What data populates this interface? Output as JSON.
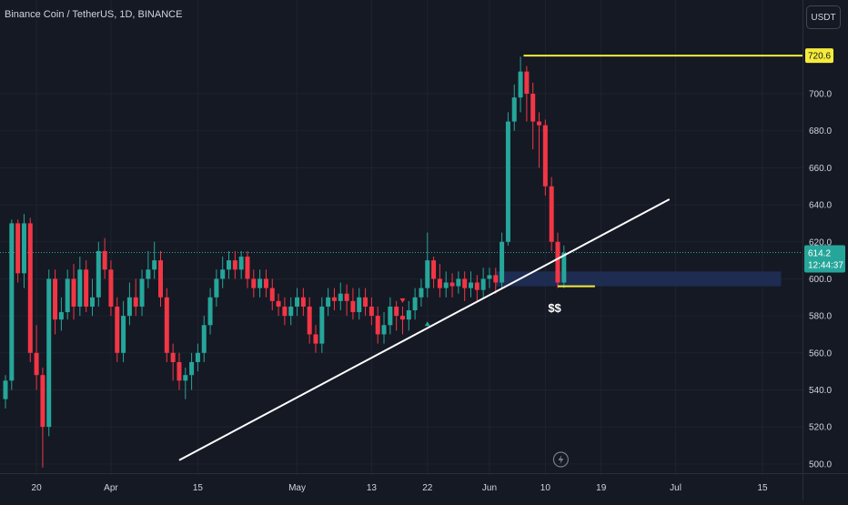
{
  "header": {
    "title": "Binance Coin / TetherUS, 1D, BINANCE",
    "currency_button": "USDT"
  },
  "colors": {
    "up": "#26a69a",
    "down": "#f23645",
    "background": "#151924",
    "grid": "#1f2330",
    "text": "#d1d4dc",
    "annotation_yellow": "#f5eb3b",
    "trendline": "#ffffff",
    "zone": "#1e2f55"
  },
  "chart_data": {
    "type": "candlestick",
    "symbol": "Binance Coin / TetherUS",
    "interval": "1D",
    "exchange": "BINANCE",
    "y_axis": {
      "min": 495,
      "max": 731,
      "ticks": [
        "500.0",
        "520.0",
        "540.0",
        "560.0",
        "580.0",
        "600.0",
        "620.0",
        "640.0",
        "660.0",
        "680.0",
        "700.0"
      ]
    },
    "x_ticks": [
      {
        "label": "20",
        "day": 5
      },
      {
        "label": "Apr",
        "day": 17
      },
      {
        "label": "15",
        "day": 31
      },
      {
        "label": "May",
        "day": 47
      },
      {
        "label": "13",
        "day": 59
      },
      {
        "label": "22",
        "day": 68
      },
      {
        "label": "Jun",
        "day": 78
      },
      {
        "label": "10",
        "day": 87
      },
      {
        "label": "19",
        "day": 96
      },
      {
        "label": "Jul",
        "day": 108
      },
      {
        "label": "15",
        "day": 122
      }
    ],
    "candles": [
      [
        0,
        535,
        545,
        530,
        548
      ],
      [
        1,
        545,
        630,
        540,
        632
      ],
      [
        2,
        630,
        603,
        598,
        632
      ],
      [
        3,
        603,
        630,
        595,
        635
      ],
      [
        4,
        630,
        560,
        555,
        633
      ],
      [
        5,
        560,
        548,
        540,
        575
      ],
      [
        6,
        548,
        520,
        498,
        552
      ],
      [
        7,
        520,
        600,
        515,
        605
      ],
      [
        8,
        600,
        578,
        570,
        605
      ],
      [
        9,
        578,
        582,
        572,
        590
      ],
      [
        10,
        582,
        600,
        578,
        605
      ],
      [
        11,
        600,
        585,
        578,
        608
      ],
      [
        12,
        585,
        605,
        580,
        612
      ],
      [
        13,
        605,
        585,
        582,
        610
      ],
      [
        14,
        585,
        590,
        580,
        600
      ],
      [
        15,
        590,
        615,
        585,
        620
      ],
      [
        16,
        615,
        605,
        600,
        622
      ],
      [
        17,
        605,
        585,
        580,
        610
      ],
      [
        18,
        585,
        560,
        555,
        590
      ],
      [
        19,
        560,
        580,
        555,
        588
      ],
      [
        20,
        580,
        590,
        575,
        598
      ],
      [
        21,
        590,
        585,
        580,
        600
      ],
      [
        22,
        585,
        600,
        580,
        605
      ],
      [
        23,
        600,
        605,
        595,
        615
      ],
      [
        24,
        605,
        610,
        600,
        620
      ],
      [
        25,
        610,
        590,
        585,
        615
      ],
      [
        26,
        590,
        560,
        555,
        595
      ],
      [
        27,
        560,
        555,
        545,
        565
      ],
      [
        28,
        555,
        545,
        540,
        560
      ],
      [
        29,
        545,
        548,
        535,
        552
      ],
      [
        30,
        548,
        555,
        540,
        560
      ],
      [
        31,
        555,
        560,
        550,
        565
      ],
      [
        32,
        560,
        575,
        555,
        580
      ],
      [
        33,
        575,
        590,
        570,
        595
      ],
      [
        34,
        590,
        600,
        585,
        605
      ],
      [
        35,
        600,
        605,
        595,
        612
      ],
      [
        36,
        605,
        610,
        600,
        615
      ],
      [
        37,
        610,
        605,
        600,
        615
      ],
      [
        38,
        605,
        612,
        600,
        615
      ],
      [
        39,
        612,
        600,
        595,
        615
      ],
      [
        40,
        600,
        595,
        590,
        605
      ],
      [
        41,
        595,
        600,
        590,
        605
      ],
      [
        42,
        600,
        595,
        590,
        605
      ],
      [
        43,
        595,
        588,
        583,
        600
      ],
      [
        44,
        588,
        585,
        580,
        592
      ],
      [
        45,
        585,
        580,
        575,
        590
      ],
      [
        46,
        580,
        585,
        575,
        590
      ],
      [
        47,
        585,
        590,
        580,
        595
      ],
      [
        48,
        590,
        585,
        580,
        595
      ],
      [
        49,
        585,
        570,
        565,
        590
      ],
      [
        50,
        570,
        565,
        560,
        575
      ],
      [
        51,
        565,
        585,
        560,
        590
      ],
      [
        52,
        585,
        590,
        580,
        595
      ],
      [
        53,
        590,
        588,
        583,
        595
      ],
      [
        54,
        588,
        592,
        583,
        598
      ],
      [
        55,
        592,
        588,
        580,
        597
      ],
      [
        56,
        588,
        582,
        578,
        595
      ],
      [
        57,
        582,
        590,
        578,
        595
      ],
      [
        58,
        590,
        585,
        580,
        595
      ],
      [
        59,
        585,
        580,
        575,
        590
      ],
      [
        60,
        580,
        570,
        565,
        585
      ],
      [
        61,
        570,
        575,
        565,
        582
      ],
      [
        62,
        575,
        585,
        570,
        590
      ],
      [
        63,
        585,
        580,
        572,
        588
      ],
      [
        64,
        580,
        578,
        570,
        585
      ],
      [
        65,
        578,
        583,
        572,
        588
      ],
      [
        66,
        583,
        590,
        578,
        595
      ],
      [
        67,
        590,
        595,
        585,
        600
      ],
      [
        68,
        595,
        610,
        590,
        625
      ],
      [
        69,
        610,
        600,
        595,
        612
      ],
      [
        70,
        600,
        595,
        590,
        608
      ],
      [
        71,
        595,
        598,
        590,
        604
      ],
      [
        72,
        598,
        596,
        590,
        603
      ],
      [
        73,
        596,
        600,
        592,
        604
      ],
      [
        74,
        600,
        595,
        588,
        604
      ],
      [
        75,
        595,
        598,
        590,
        604
      ],
      [
        76,
        598,
        594,
        588,
        602
      ],
      [
        77,
        594,
        600,
        590,
        606
      ],
      [
        78,
        600,
        602,
        595,
        606
      ],
      [
        79,
        602,
        598,
        592,
        606
      ],
      [
        80,
        598,
        620,
        595,
        625
      ],
      [
        81,
        620,
        685,
        618,
        690
      ],
      [
        82,
        685,
        698,
        680,
        705
      ],
      [
        83,
        698,
        712,
        690,
        720
      ],
      [
        84,
        712,
        700,
        685,
        715
      ],
      [
        85,
        700,
        685,
        670,
        706
      ],
      [
        86,
        685,
        683,
        660,
        690
      ],
      [
        87,
        683,
        650,
        645,
        686
      ],
      [
        88,
        650,
        620,
        615,
        655
      ],
      [
        89,
        620,
        598,
        595,
        625
      ],
      [
        90,
        598,
        614,
        595,
        618
      ]
    ],
    "current_price": {
      "value": 614.2,
      "label": "614.2",
      "countdown": "12:44:37"
    },
    "annotations": {
      "high_line": {
        "value": 720.6,
        "label": "720.6",
        "from_day": 83.5,
        "to_day": 122
      },
      "low_line": {
        "value": 596,
        "from_day": 89,
        "to_day": 95
      },
      "dollar_label": {
        "text": "$$",
        "day": 88.5,
        "value": 589
      },
      "zone": {
        "from_value": 596,
        "to_value": 604,
        "from_day": 79,
        "to_day": 125
      },
      "trendline": {
        "from_day": 28,
        "from_value": 502,
        "to_day": 107,
        "to_value": 643
      },
      "markers": [
        {
          "type": "down",
          "day": 64,
          "value": 588
        },
        {
          "type": "up",
          "day": 68,
          "value": 576
        },
        {
          "type": "down",
          "day": 87,
          "value": 679
        }
      ]
    }
  }
}
